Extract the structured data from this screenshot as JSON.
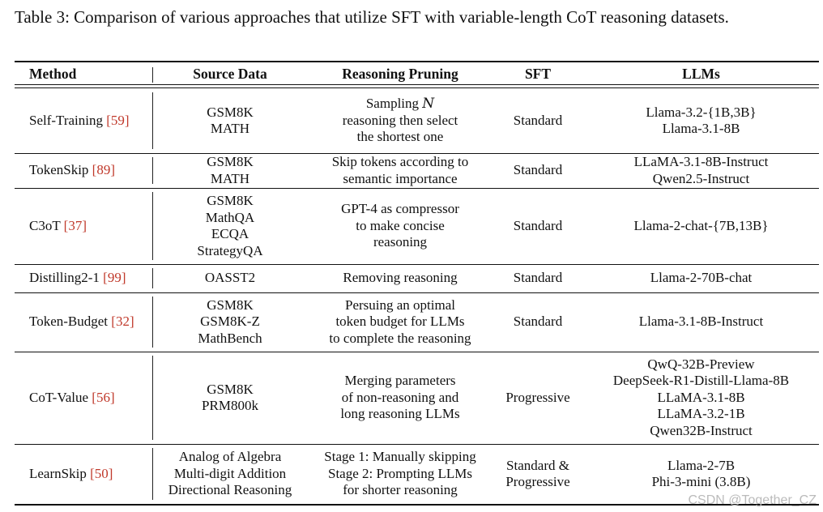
{
  "caption": "Table 3: Comparison of various approaches that utilize SFT with variable-length CoT reasoning datasets.",
  "headers": [
    "Method",
    "Source Data",
    "Reasoning Pruning",
    "SFT",
    "LLMs"
  ],
  "rows": [
    {
      "method": "Self-Training",
      "ref": "59",
      "source": [
        "GSM8K",
        "MATH"
      ],
      "pruning": [
        "Sampling N",
        "reasoning then select",
        "the shortest one"
      ],
      "sft": [
        "Standard"
      ],
      "llms": [
        "Llama-3.2-{1B,3B}",
        "Llama-3.1-8B"
      ]
    },
    {
      "method": "TokenSkip",
      "ref": "89",
      "source": [
        "GSM8K",
        "MATH"
      ],
      "pruning": [
        "Skip tokens according to",
        "semantic importance"
      ],
      "sft": [
        "Standard"
      ],
      "llms": [
        "LLaMA-3.1-8B-Instruct",
        "Qwen2.5-Instruct"
      ]
    },
    {
      "method": "C3oT",
      "ref": "37",
      "source": [
        "GSM8K",
        "MathQA",
        "ECQA",
        "StrategyQA"
      ],
      "pruning": [
        "GPT-4 as compressor",
        "to make concise",
        "reasoning"
      ],
      "sft": [
        "Standard"
      ],
      "llms": [
        "Llama-2-chat-{7B,13B}"
      ]
    },
    {
      "method": "Distilling2-1",
      "ref": "99",
      "source": [
        "OASST2"
      ],
      "pruning": [
        "Removing reasoning"
      ],
      "sft": [
        "Standard"
      ],
      "llms": [
        "Llama-2-70B-chat"
      ]
    },
    {
      "method": "Token-Budget",
      "ref": "32",
      "source": [
        "GSM8K",
        "GSM8K-Z",
        "MathBench"
      ],
      "pruning": [
        "Persuing an optimal",
        "token budget for LLMs",
        "to complete the reasoning"
      ],
      "sft": [
        "Standard"
      ],
      "llms": [
        "Llama-3.1-8B-Instruct"
      ]
    },
    {
      "method": "CoT-Value",
      "ref": "56",
      "source": [
        "GSM8K",
        "PRM800k"
      ],
      "pruning": [
        "Merging parameters",
        "of non-reasoning and",
        "long reasoning LLMs"
      ],
      "sft": [
        "Progressive"
      ],
      "llms": [
        "QwQ-32B-Preview",
        "DeepSeek-R1-Distill-Llama-8B",
        "LLaMA-3.1-8B",
        "LLaMA-3.2-1B",
        "Qwen32B-Instruct"
      ]
    },
    {
      "method": "LearnSkip",
      "ref": "50",
      "source": [
        "Analog of Algebra",
        "Multi-digit Addition",
        "Directional Reasoning"
      ],
      "pruning": [
        "Stage 1: Manually skipping",
        "Stage 2: Prompting LLMs",
        "for shorter reasoning"
      ],
      "sft": [
        "Standard &",
        "Progressive"
      ],
      "llms": [
        "Llama-2-7B",
        "Phi-3-mini (3.8B)"
      ]
    }
  ],
  "watermark": "CSDN @Together_CZ"
}
